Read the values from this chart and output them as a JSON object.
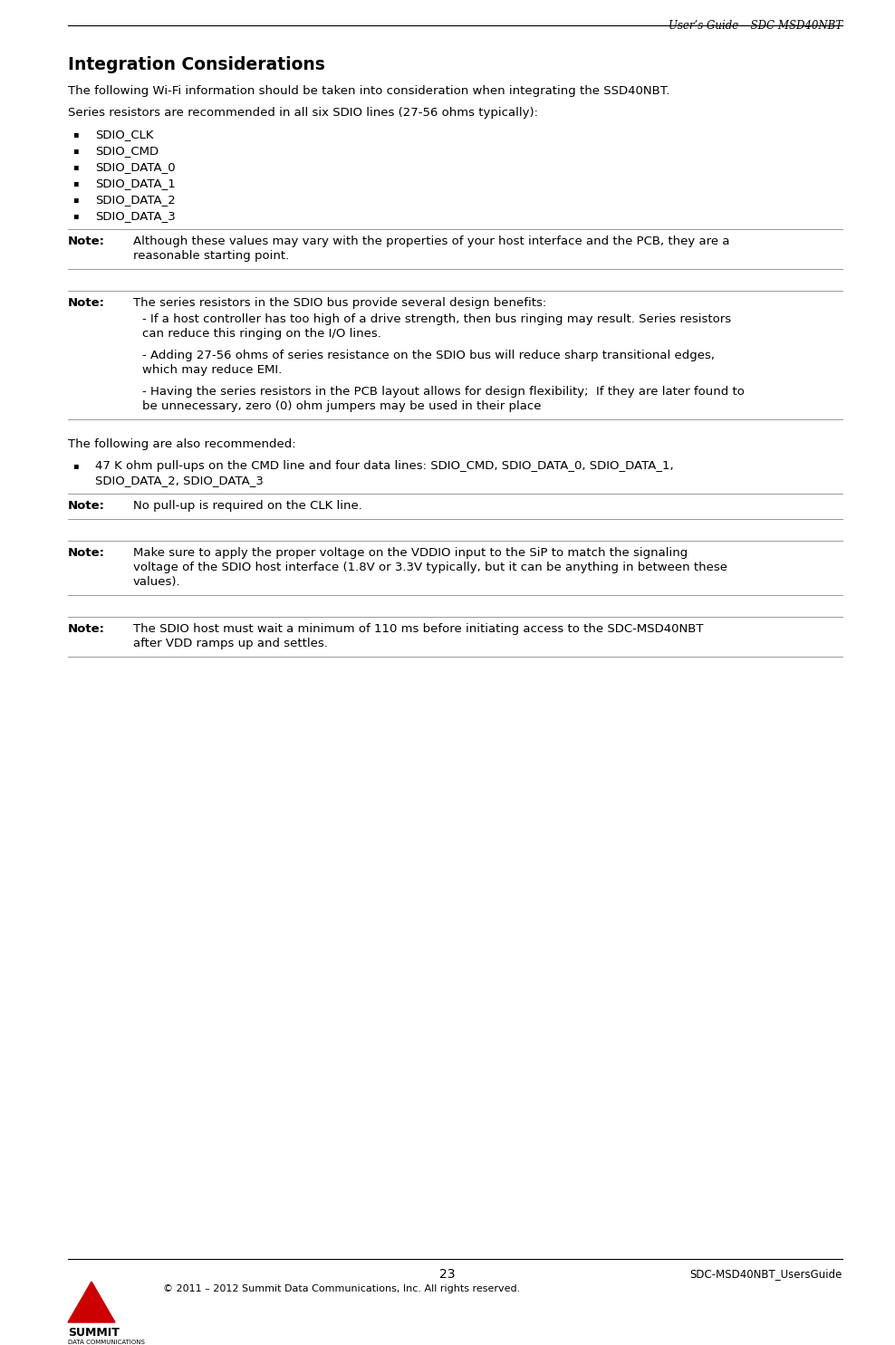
{
  "header_text": "User’s Guide – SDC-MSD40NBT",
  "title": "Integration Considerations",
  "body": [
    {
      "type": "para",
      "text": "The following Wi-Fi information should be taken into consideration when integrating the SSD40NBT."
    },
    {
      "type": "para_gap"
    },
    {
      "type": "para",
      "text": "Series resistors are recommended in all six SDIO lines (27-56 ohms typically):"
    },
    {
      "type": "para_gap"
    },
    {
      "type": "bullet",
      "lines": [
        "SDIO_CLK"
      ]
    },
    {
      "type": "bullet",
      "lines": [
        "SDIO_CMD"
      ]
    },
    {
      "type": "bullet",
      "lines": [
        "SDIO_DATA_0"
      ]
    },
    {
      "type": "bullet",
      "lines": [
        "SDIO_DATA_1"
      ]
    },
    {
      "type": "bullet",
      "lines": [
        "SDIO_DATA_2"
      ]
    },
    {
      "type": "bullet",
      "lines": [
        "SDIO_DATA_3"
      ]
    },
    {
      "type": "hline"
    },
    {
      "type": "note",
      "label": "Note:",
      "lines": [
        "Although these values may vary with the properties of your host interface and the PCB, they are a",
        "reasonable starting point."
      ]
    },
    {
      "type": "hline"
    },
    {
      "type": "spacer"
    },
    {
      "type": "hline"
    },
    {
      "type": "note",
      "label": "Note:",
      "lines": [
        "The series resistors in the SDIO bus provide several design benefits:"
      ]
    },
    {
      "type": "sub_para",
      "lines": [
        "- If a host controller has too high of a drive strength, then bus ringing may result. Series resistors",
        "can reduce this ringing on the I/O lines."
      ]
    },
    {
      "type": "sub_para_gap"
    },
    {
      "type": "sub_para",
      "lines": [
        "- Adding 27-56 ohms of series resistance on the SDIO bus will reduce sharp transitional edges,",
        "which may reduce EMI."
      ]
    },
    {
      "type": "sub_para_gap"
    },
    {
      "type": "sub_para",
      "lines": [
        "- Having the series resistors in the PCB layout allows for design flexibility;  If they are later found to",
        "be unnecessary, zero (0) ohm jumpers may be used in their place"
      ]
    },
    {
      "type": "hline"
    },
    {
      "type": "spacer"
    },
    {
      "type": "para",
      "text": "The following are also recommended:"
    },
    {
      "type": "para_gap"
    },
    {
      "type": "bullet",
      "lines": [
        "47 K ohm pull-ups on the CMD line and four data lines: SDIO_CMD, SDIO_DATA_0, SDIO_DATA_1,",
        "SDIO_DATA_2, SDIO_DATA_3"
      ]
    },
    {
      "type": "hline"
    },
    {
      "type": "note",
      "label": "Note:",
      "lines": [
        "No pull-up is required on the CLK line."
      ]
    },
    {
      "type": "hline"
    },
    {
      "type": "spacer"
    },
    {
      "type": "hline"
    },
    {
      "type": "note",
      "label": "Note:",
      "lines": [
        "Make sure to apply the proper voltage on the VDDIO input to the SiP to match the signaling",
        "voltage of the SDIO host interface (1.8V or 3.3V typically, but it can be anything in between these",
        "values)."
      ]
    },
    {
      "type": "hline"
    },
    {
      "type": "spacer"
    },
    {
      "type": "hline"
    },
    {
      "type": "note",
      "label": "Note:",
      "lines": [
        "The SDIO host must wait a minimum of 110 ms before initiating access to the SDC-MSD40NBT",
        "after VDD ramps up and settles."
      ]
    },
    {
      "type": "hline"
    }
  ],
  "footer_page": "23",
  "footer_right": "SDC-MSD40NBT_UsersGuide",
  "footer_copy": "© 2011 – 2012 Summit Data Communications, Inc. All rights reserved.",
  "bg_color": "#ffffff",
  "text_color": "#000000"
}
